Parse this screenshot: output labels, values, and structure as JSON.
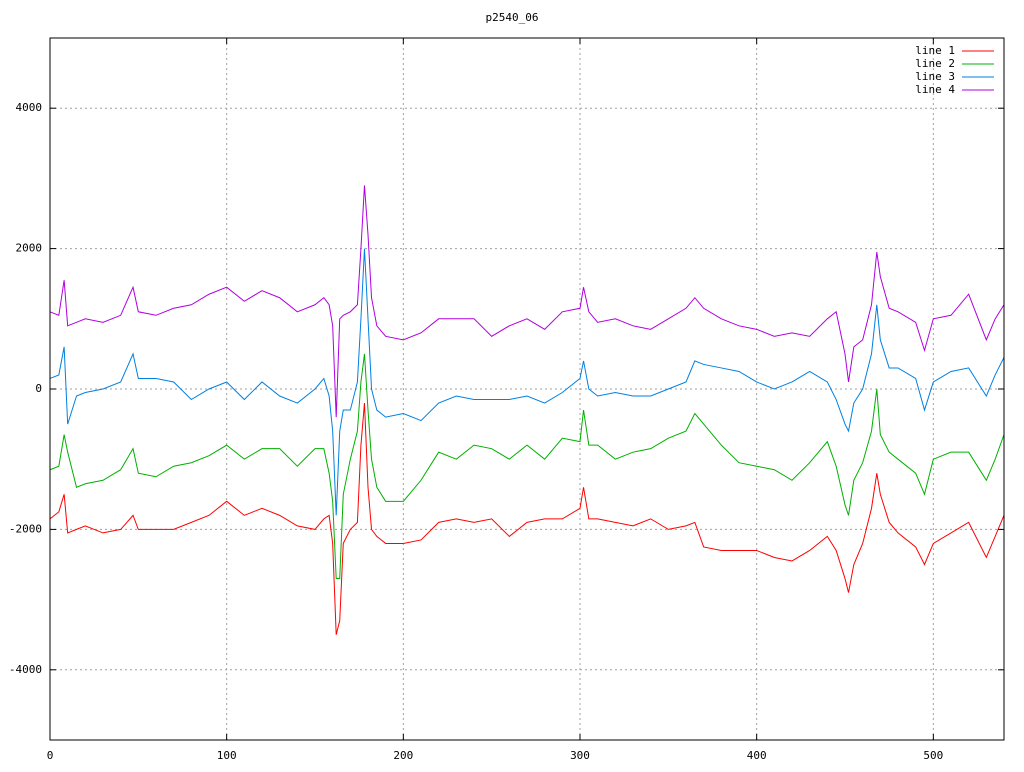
{
  "chart_data": {
    "type": "line",
    "title": "p2540_06",
    "x": [
      0,
      5,
      8,
      10,
      15,
      20,
      30,
      40,
      47,
      50,
      60,
      70,
      80,
      90,
      100,
      110,
      120,
      130,
      140,
      150,
      155,
      158,
      160,
      162,
      164,
      166,
      170,
      174,
      176,
      178,
      180,
      182,
      185,
      190,
      200,
      210,
      220,
      230,
      240,
      250,
      260,
      270,
      280,
      290,
      300,
      302,
      305,
      310,
      320,
      330,
      340,
      350,
      360,
      365,
      370,
      380,
      390,
      400,
      410,
      420,
      430,
      440,
      445,
      450,
      452,
      455,
      460,
      465,
      468,
      470,
      475,
      480,
      490,
      495,
      500,
      510,
      520,
      530,
      535,
      540
    ],
    "series": [
      {
        "name": "line 1",
        "color": "#ff0000",
        "values": [
          -1850,
          -1750,
          -1500,
          -2050,
          -2000,
          -1950,
          -2050,
          -2000,
          -1800,
          -2000,
          -2000,
          -2000,
          -1900,
          -1800,
          -1600,
          -1800,
          -1700,
          -1800,
          -1950,
          -2000,
          -1850,
          -1800,
          -2200,
          -3500,
          -3300,
          -2200,
          -2000,
          -1900,
          -800,
          -200,
          -1400,
          -2000,
          -2100,
          -2200,
          -2200,
          -2150,
          -1900,
          -1850,
          -1900,
          -1850,
          -2100,
          -1900,
          -1850,
          -1850,
          -1700,
          -1400,
          -1850,
          -1850,
          -1900,
          -1950,
          -1850,
          -2000,
          -1950,
          -1900,
          -2250,
          -2300,
          -2300,
          -2300,
          -2400,
          -2450,
          -2300,
          -2100,
          -2300,
          -2700,
          -2900,
          -2500,
          -2200,
          -1700,
          -1200,
          -1500,
          -1900,
          -2050,
          -2250,
          -2500,
          -2200,
          -2050,
          -1900,
          -2400,
          -2100,
          -1800
        ]
      },
      {
        "name": "line 2",
        "color": "#00b000",
        "values": [
          -1150,
          -1100,
          -650,
          -900,
          -1400,
          -1350,
          -1300,
          -1150,
          -850,
          -1200,
          -1250,
          -1100,
          -1050,
          -950,
          -800,
          -1000,
          -850,
          -850,
          -1100,
          -850,
          -850,
          -1200,
          -1600,
          -2700,
          -2700,
          -1500,
          -1000,
          -600,
          100,
          500,
          -300,
          -1000,
          -1400,
          -1600,
          -1600,
          -1300,
          -900,
          -1000,
          -800,
          -850,
          -1000,
          -800,
          -1000,
          -700,
          -750,
          -300,
          -800,
          -800,
          -1000,
          -900,
          -850,
          -700,
          -600,
          -350,
          -500,
          -800,
          -1050,
          -1100,
          -1150,
          -1300,
          -1050,
          -750,
          -1100,
          -1650,
          -1800,
          -1300,
          -1050,
          -600,
          0,
          -650,
          -900,
          -1000,
          -1200,
          -1500,
          -1000,
          -900,
          -900,
          -1300,
          -1000,
          -650
        ]
      },
      {
        "name": "line 3",
        "color": "#0080e0",
        "values": [
          150,
          200,
          600,
          -500,
          -100,
          -50,
          0,
          100,
          500,
          150,
          150,
          100,
          -150,
          0,
          100,
          -150,
          100,
          -100,
          -200,
          0,
          150,
          -100,
          -600,
          -1800,
          -600,
          -300,
          -300,
          100,
          1000,
          2000,
          1000,
          0,
          -300,
          -400,
          -350,
          -450,
          -200,
          -100,
          -150,
          -150,
          -150,
          -100,
          -200,
          -50,
          150,
          400,
          0,
          -100,
          -50,
          -100,
          -100,
          0,
          100,
          400,
          350,
          300,
          250,
          100,
          0,
          100,
          250,
          100,
          -150,
          -500,
          -600,
          -200,
          0,
          500,
          1200,
          700,
          300,
          300,
          150,
          -300,
          100,
          250,
          300,
          -100,
          200,
          450
        ]
      },
      {
        "name": "line 4",
        "color": "#b000e0",
        "values": [
          1100,
          1050,
          1550,
          900,
          950,
          1000,
          950,
          1050,
          1450,
          1100,
          1050,
          1150,
          1200,
          1350,
          1450,
          1250,
          1400,
          1300,
          1100,
          1200,
          1300,
          1200,
          900,
          -400,
          1000,
          1050,
          1100,
          1200,
          2000,
          2900,
          2200,
          1300,
          900,
          750,
          700,
          800,
          1000,
          1000,
          1000,
          750,
          900,
          1000,
          850,
          1100,
          1150,
          1450,
          1100,
          950,
          1000,
          900,
          850,
          1000,
          1150,
          1300,
          1150,
          1000,
          900,
          850,
          750,
          800,
          750,
          1000,
          1100,
          500,
          100,
          600,
          700,
          1200,
          1950,
          1600,
          1150,
          1100,
          950,
          550,
          1000,
          1050,
          1350,
          700,
          1000,
          1200
        ]
      }
    ],
    "xlim": [
      0,
      540
    ],
    "xticks": [
      0,
      100,
      200,
      300,
      400,
      500
    ],
    "ylim": [
      -5000,
      5000
    ],
    "yticks": [
      -4000,
      -2000,
      0,
      2000,
      4000
    ],
    "grid": true,
    "legend": "top-right"
  }
}
